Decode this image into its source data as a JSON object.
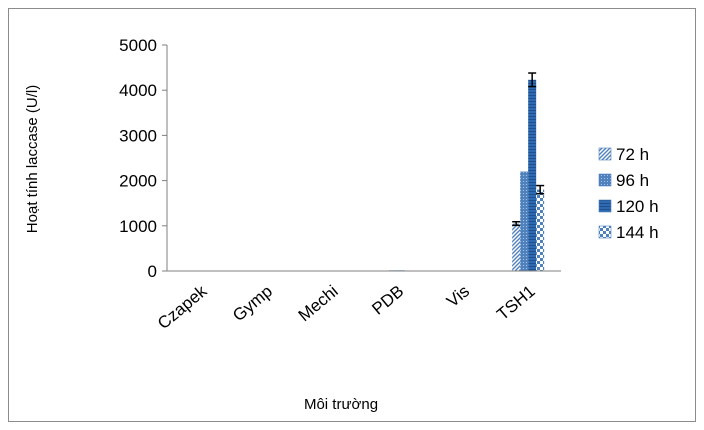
{
  "chart_data": {
    "type": "bar",
    "title": "",
    "xlabel": "Môi trường",
    "ylabel": "Hoạt tính laccase (U/l)",
    "ylim": [
      0,
      5000
    ],
    "yticks": [
      0,
      1000,
      2000,
      3000,
      4000,
      5000
    ],
    "grid": false,
    "legend_position": "right",
    "categories": [
      "Czapek",
      "Gymp",
      "Mechi",
      "PDB",
      "Vis",
      "TSH1"
    ],
    "series": [
      {
        "name": "72 h",
        "pattern": "diagonal",
        "color": "#4f81bd",
        "values": [
          0,
          0,
          0,
          10,
          0,
          1050
        ],
        "errors": [
          0,
          0,
          0,
          0,
          0,
          40
        ]
      },
      {
        "name": "96 h",
        "pattern": "dotted",
        "color": "#4f81bd",
        "values": [
          0,
          0,
          10,
          15,
          0,
          2200
        ],
        "errors": [
          0,
          0,
          0,
          0,
          0,
          0
        ]
      },
      {
        "name": "120 h",
        "pattern": "horizontal",
        "color": "#2e6ab1",
        "values": [
          0,
          0,
          0,
          15,
          0,
          4230
        ],
        "errors": [
          0,
          0,
          0,
          0,
          0,
          150
        ]
      },
      {
        "name": "144 h",
        "pattern": "checker",
        "color": "#4f81bd",
        "values": [
          0,
          0,
          0,
          10,
          0,
          1800
        ],
        "errors": [
          0,
          0,
          0,
          0,
          0,
          90
        ]
      }
    ]
  }
}
